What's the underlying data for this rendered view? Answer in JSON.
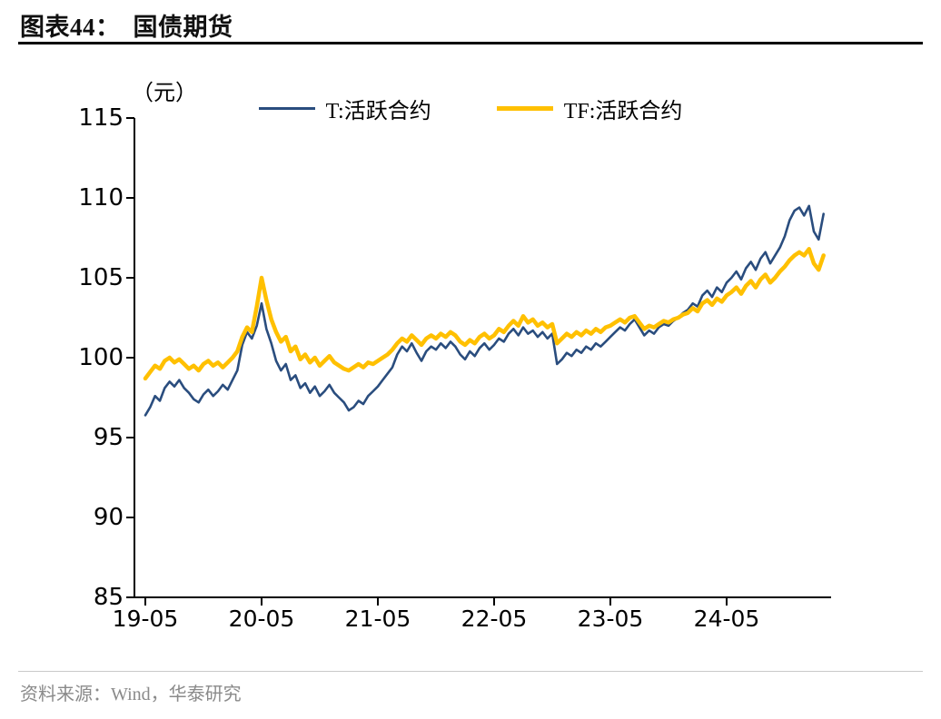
{
  "title_label": "图表44：",
  "title_text": "国债期货",
  "source": "资料来源：Wind，华泰研究",
  "chart_data": {
    "type": "line",
    "title": "国债期货",
    "xlabel": "",
    "ylabel": "（元）",
    "unit_label": "（元）",
    "ylim": [
      85,
      115
    ],
    "yticks": [
      115,
      110,
      105,
      100,
      95,
      90,
      85
    ],
    "ytick_labels": [
      "115",
      "110",
      "105",
      "100",
      "95",
      "90",
      "85"
    ],
    "xtick_labels": [
      "19-05",
      "20-05",
      "21-05",
      "22-05",
      "23-05",
      "24-05"
    ],
    "xticks_months": [
      0,
      12,
      24,
      36,
      48,
      60
    ],
    "x_start": 0,
    "x_step": 0.5,
    "grid": "off",
    "legend_position": "top-center",
    "series": [
      {
        "name": "T:活跃合约",
        "color": "#2a4d7e",
        "width": 2.6,
        "values": [
          96.4,
          96.9,
          97.6,
          97.3,
          98.1,
          98.5,
          98.2,
          98.6,
          98.1,
          97.8,
          97.4,
          97.2,
          97.7,
          98.0,
          97.6,
          97.9,
          98.3,
          98.0,
          98.6,
          99.2,
          100.8,
          101.6,
          101.2,
          102.0,
          103.4,
          101.8,
          100.9,
          99.8,
          99.2,
          99.6,
          98.6,
          98.9,
          98.1,
          98.4,
          97.8,
          98.2,
          97.6,
          97.9,
          98.3,
          97.8,
          97.5,
          97.2,
          96.7,
          96.9,
          97.3,
          97.1,
          97.6,
          97.9,
          98.2,
          98.6,
          99.0,
          99.4,
          100.2,
          100.7,
          100.4,
          100.9,
          100.3,
          99.8,
          100.4,
          100.7,
          100.5,
          100.9,
          100.6,
          101.0,
          100.7,
          100.2,
          99.9,
          100.4,
          100.1,
          100.6,
          100.9,
          100.5,
          100.8,
          101.2,
          101.0,
          101.5,
          101.8,
          101.4,
          101.9,
          101.5,
          101.7,
          101.3,
          101.6,
          101.2,
          101.5,
          99.6,
          99.9,
          100.3,
          100.1,
          100.5,
          100.3,
          100.7,
          100.5,
          100.9,
          100.7,
          101.0,
          101.3,
          101.6,
          101.9,
          101.7,
          102.1,
          102.4,
          101.9,
          101.4,
          101.7,
          101.5,
          101.9,
          102.1,
          102.0,
          102.3,
          102.5,
          102.8,
          103.0,
          103.4,
          103.2,
          103.9,
          104.2,
          103.8,
          104.4,
          104.1,
          104.7,
          105.0,
          105.4,
          104.9,
          105.6,
          106.0,
          105.5,
          106.2,
          106.6,
          105.9,
          106.4,
          106.9,
          107.6,
          108.6,
          109.2,
          109.4,
          108.9,
          109.5,
          107.9,
          107.4,
          109.0
        ]
      },
      {
        "name": "TF:活跃合约",
        "color": "#ffc000",
        "width": 4.5,
        "values": [
          98.7,
          99.1,
          99.5,
          99.3,
          99.8,
          100.0,
          99.7,
          99.9,
          99.6,
          99.3,
          99.5,
          99.2,
          99.6,
          99.8,
          99.5,
          99.7,
          99.4,
          99.7,
          100.0,
          100.4,
          101.3,
          101.9,
          101.6,
          103.2,
          105.0,
          103.6,
          102.4,
          101.6,
          101.0,
          101.3,
          100.4,
          100.7,
          99.9,
          100.2,
          99.7,
          100.0,
          99.5,
          99.8,
          100.1,
          99.7,
          99.5,
          99.3,
          99.2,
          99.4,
          99.6,
          99.4,
          99.7,
          99.6,
          99.8,
          100.0,
          100.2,
          100.5,
          100.9,
          101.2,
          101.0,
          101.4,
          101.1,
          100.8,
          101.2,
          101.4,
          101.2,
          101.5,
          101.3,
          101.6,
          101.4,
          101.0,
          100.8,
          101.1,
          100.9,
          101.3,
          101.5,
          101.2,
          101.4,
          101.8,
          101.6,
          102.0,
          102.3,
          102.0,
          102.6,
          102.2,
          102.4,
          102.0,
          102.2,
          101.9,
          102.1,
          100.9,
          101.2,
          101.5,
          101.3,
          101.6,
          101.4,
          101.7,
          101.5,
          101.8,
          101.6,
          101.9,
          102.0,
          102.2,
          102.4,
          102.2,
          102.5,
          102.6,
          102.2,
          101.8,
          102.0,
          101.9,
          102.1,
          102.3,
          102.2,
          102.4,
          102.5,
          102.7,
          102.8,
          103.1,
          102.9,
          103.4,
          103.6,
          103.3,
          103.7,
          103.5,
          103.9,
          104.1,
          104.4,
          104.0,
          104.5,
          104.8,
          104.4,
          104.9,
          105.2,
          104.7,
          105.0,
          105.4,
          105.7,
          106.1,
          106.4,
          106.6,
          106.4,
          106.8,
          105.9,
          105.5,
          106.4
        ]
      }
    ]
  }
}
